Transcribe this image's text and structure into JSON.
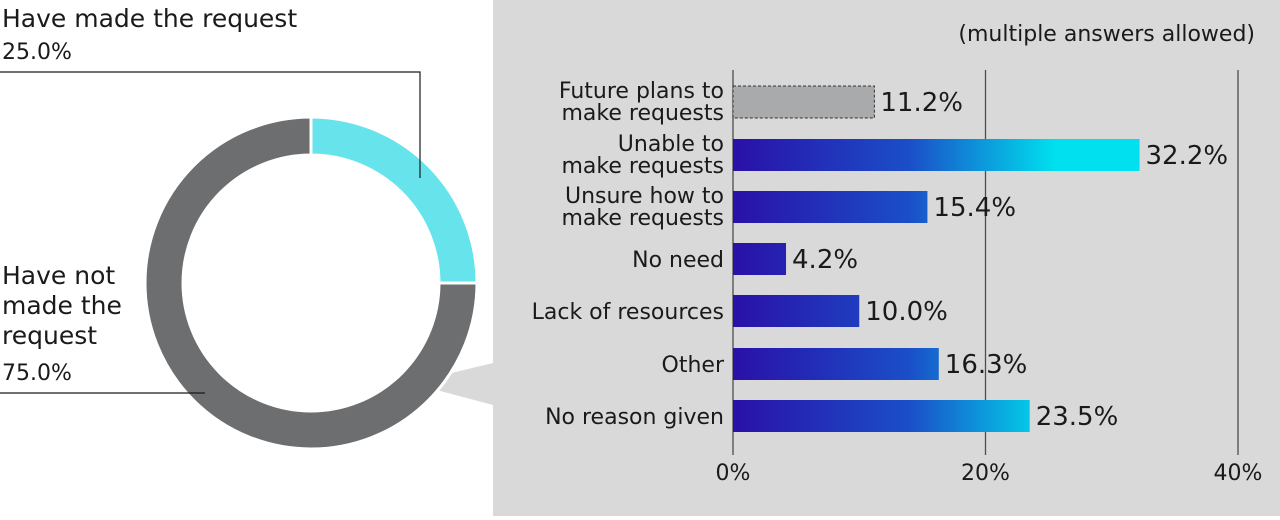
{
  "chart_data": [
    {
      "type": "pie",
      "style": "donut",
      "slices": [
        {
          "label": "Have made the request",
          "value": 25.0,
          "display": "25.0%",
          "color": "#67e3ec"
        },
        {
          "label": "Have not made the request",
          "label_lines": [
            "Have not",
            "made the",
            "request"
          ],
          "value": 75.0,
          "display": "75.0%",
          "color": "#6d6e70"
        }
      ]
    },
    {
      "type": "bar",
      "orientation": "horizontal",
      "note": "(multiple answers allowed)",
      "categories": [
        [
          "Future plans to",
          "make requests"
        ],
        [
          "Unable to",
          "make requests"
        ],
        [
          "Unsure how to",
          "make requests"
        ],
        [
          "No need"
        ],
        [
          "Lack of resources"
        ],
        [
          "Other"
        ],
        [
          "No reason given"
        ]
      ],
      "values": [
        11.2,
        32.2,
        15.4,
        4.2,
        10.0,
        16.3,
        23.5
      ],
      "value_labels": [
        "11.2%",
        "32.2%",
        "15.4%",
        "4.2%",
        "10.0%",
        "16.3%",
        "23.5%"
      ],
      "bar_styles": [
        "dashed-gray",
        "gradient",
        "gradient",
        "gradient",
        "gradient",
        "gradient",
        "gradient"
      ],
      "xlim": [
        0,
        40
      ],
      "xticks": [
        0,
        20,
        40
      ],
      "xtick_labels": [
        "0%",
        "20%",
        "40%"
      ],
      "grid": true,
      "colors": {
        "gray_bar": "#a9aaac",
        "gradient_start": "#2a10a8",
        "gradient_mid": "#1a4fc8",
        "gradient_end": "#00e0ee",
        "panel": "#d9d9d9",
        "gridline": "#4d4d4d"
      }
    }
  ]
}
